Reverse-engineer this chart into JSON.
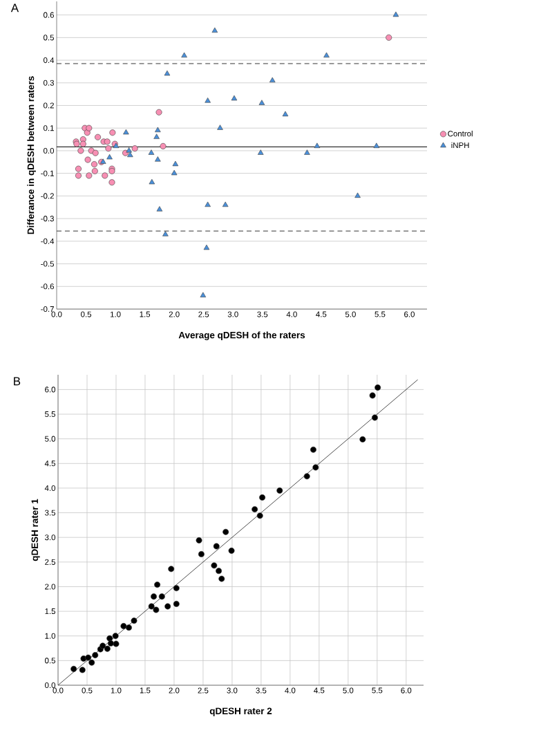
{
  "chart_data": [
    {
      "type": "scatter",
      "ylabel": "Differance in qDESH between raters",
      "xlabel": "Average qDESH of the raters",
      "annotations": [
        "A"
      ],
      "xlim": [
        0,
        6.3
      ],
      "ylim": [
        -0.7,
        0.66
      ],
      "xticks": [
        {
          "value": 0,
          "label": "0.0"
        },
        {
          "value": 0.5,
          "label": "0.5"
        },
        {
          "value": 1,
          "label": "1.0"
        },
        {
          "value": 1.5,
          "label": "1.5"
        },
        {
          "value": 2,
          "label": "2.0"
        },
        {
          "value": 2.5,
          "label": "2.5"
        },
        {
          "value": 3,
          "label": "3.0"
        },
        {
          "value": 3.5,
          "label": "3.5"
        },
        {
          "value": 4,
          "label": "4.0"
        },
        {
          "value": 4.5,
          "label": "4.5"
        },
        {
          "value": 5,
          "label": "5.0"
        },
        {
          "value": 5.5,
          "label": "5.5"
        },
        {
          "value": 6,
          "label": "6.0"
        }
      ],
      "yticks": [
        {
          "value": -0.7,
          "label": "-0.7"
        },
        {
          "value": -0.6,
          "label": "-0.6"
        },
        {
          "value": -0.5,
          "label": "-0.5"
        },
        {
          "value": -0.4,
          "label": "-0.4"
        },
        {
          "value": -0.3,
          "label": "-0.3"
        },
        {
          "value": -0.2,
          "label": "-0.2"
        },
        {
          "value": -0.1,
          "label": "-0.1"
        },
        {
          "value": 0,
          "label": "0.0"
        },
        {
          "value": 0.1,
          "label": "0.1"
        },
        {
          "value": 0.2,
          "label": "0.2"
        },
        {
          "value": 0.3,
          "label": "0.3"
        },
        {
          "value": 0.4,
          "label": "0.4"
        },
        {
          "value": 0.5,
          "label": "0.5"
        },
        {
          "value": 0.6,
          "label": "0.6"
        }
      ],
      "grid": "y",
      "legend": "right",
      "ref_lines": [
        {
          "axis": "y",
          "value": 0.017,
          "line_style": "solid",
          "color": "#000000"
        },
        {
          "axis": "y",
          "value": 0.385,
          "line_style": "dashed",
          "color": "#333333"
        },
        {
          "axis": "y",
          "value": -0.355,
          "line_style": "dashed",
          "color": "#333333"
        }
      ],
      "series": [
        {
          "name": "Control",
          "color": "#f78fb3",
          "marker": "circle",
          "x": [
            0.33,
            0.34,
            0.37,
            0.37,
            0.48,
            0.52,
            0.55,
            0.55,
            0.7,
            0.41,
            0.45,
            0.59,
            0.66,
            0.64,
            0.65,
            0.53,
            0.82,
            0.95,
            0.94,
            0.94,
            0.94,
            0.88,
            0.8,
            0.99,
            0.86,
            1.33,
            1.17,
            1.74,
            1.81,
            0.76,
            0.45,
            5.65
          ],
          "values": [
            0.04,
            0.03,
            -0.08,
            -0.11,
            0.1,
            0.08,
            0.1,
            -0.11,
            0.06,
            0.0,
            0.05,
            0.0,
            -0.01,
            -0.06,
            -0.09,
            -0.04,
            -0.11,
            0.08,
            -0.08,
            -0.09,
            -0.14,
            0.01,
            0.04,
            0.03,
            0.04,
            0.01,
            -0.01,
            0.17,
            0.02,
            -0.05,
            0.03,
            0.5
          ]
        },
        {
          "name": "iNPH",
          "color": "#4a8fd9",
          "marker": "triangle",
          "x": [
            2.69,
            2.17,
            1.88,
            2.57,
            2.78,
            1.18,
            1.72,
            1.7,
            1.01,
            1.23,
            1.25,
            0.9,
            0.79,
            1.61,
            1.72,
            2.02,
            2.0,
            1.62,
            1.75,
            1.85,
            2.57,
            2.87,
            2.55,
            2.49,
            5.77,
            4.59,
            3.67,
            3.02,
            3.49,
            3.89,
            3.47,
            4.26,
            4.43,
            5.44,
            5.12
          ],
          "values": [
            0.53,
            0.42,
            0.34,
            0.22,
            0.1,
            0.08,
            0.09,
            0.06,
            0.02,
            0.0,
            -0.02,
            -0.03,
            -0.05,
            -0.01,
            -0.04,
            -0.06,
            -0.1,
            -0.14,
            -0.26,
            -0.37,
            -0.24,
            -0.24,
            -0.43,
            -0.64,
            0.6,
            0.42,
            0.31,
            0.23,
            0.21,
            0.16,
            -0.01,
            -0.01,
            0.02,
            0.02,
            -0.2
          ]
        }
      ]
    },
    {
      "type": "scatter",
      "ylabel": "qDESH rater 1",
      "xlabel": "qDESH rater 2",
      "annotations": [
        "B"
      ],
      "xlim": [
        0,
        6.3
      ],
      "ylim": [
        0,
        6.3
      ],
      "xticks": [
        {
          "value": 0,
          "label": "0.0"
        },
        {
          "value": 0.5,
          "label": "0.5"
        },
        {
          "value": 1,
          "label": "1.0"
        },
        {
          "value": 1.5,
          "label": "1.5"
        },
        {
          "value": 2,
          "label": "2.0"
        },
        {
          "value": 2.5,
          "label": "2.5"
        },
        {
          "value": 3,
          "label": "3.0"
        },
        {
          "value": 3.5,
          "label": "3.5"
        },
        {
          "value": 4,
          "label": "4.0"
        },
        {
          "value": 4.5,
          "label": "4.5"
        },
        {
          "value": 5,
          "label": "5.0"
        },
        {
          "value": 5.5,
          "label": "5.5"
        },
        {
          "value": 6,
          "label": "6.0"
        }
      ],
      "yticks": [
        {
          "value": 0,
          "label": "0.0"
        },
        {
          "value": 0.5,
          "label": "0.5"
        },
        {
          "value": 1,
          "label": "1.0"
        },
        {
          "value": 1.5,
          "label": "1.5"
        },
        {
          "value": 2,
          "label": "2.0"
        },
        {
          "value": 2.5,
          "label": "2.5"
        },
        {
          "value": 3,
          "label": "3.0"
        },
        {
          "value": 3.5,
          "label": "3.5"
        },
        {
          "value": 4,
          "label": "4.0"
        },
        {
          "value": 4.5,
          "label": "4.5"
        },
        {
          "value": 5,
          "label": "5.0"
        },
        {
          "value": 5.5,
          "label": "5.5"
        },
        {
          "value": 6,
          "label": "6.0"
        }
      ],
      "grid": true,
      "legend": false,
      "series": [
        {
          "color": "#000000",
          "marker": "circle",
          "x": [
            0.27,
            0.42,
            0.44,
            0.58,
            0.73,
            0.85,
            0.89,
            1.0,
            0.99,
            1.13,
            1.22,
            1.31,
            1.61,
            1.69,
            1.65,
            1.71,
            1.79,
            1.89,
            1.95,
            2.04,
            2.04,
            2.43,
            2.47,
            2.73,
            2.69,
            2.77,
            2.82,
            2.89,
            2.99,
            0.52,
            0.64,
            0.77,
            0.91,
            3.39,
            3.48,
            3.52,
            3.82,
            4.29,
            4.44,
            4.4,
            5.25,
            5.46,
            5.42,
            5.51
          ],
          "values": [
            0.33,
            0.31,
            0.54,
            0.46,
            0.73,
            0.74,
            0.95,
            0.84,
            1.0,
            1.2,
            1.17,
            1.31,
            1.6,
            1.53,
            1.8,
            2.04,
            1.8,
            1.6,
            2.36,
            1.65,
            1.97,
            2.94,
            2.66,
            2.82,
            2.43,
            2.32,
            2.16,
            3.11,
            2.73,
            0.56,
            0.61,
            0.8,
            0.85,
            3.57,
            3.44,
            3.81,
            3.95,
            4.24,
            4.42,
            4.78,
            4.99,
            5.43,
            5.88,
            6.04
          ]
        },
        {
          "type": "line",
          "color": "#222222",
          "marker": "none",
          "x": [
            0,
            6.2
          ],
          "values": [
            0,
            6.2
          ]
        }
      ]
    }
  ]
}
